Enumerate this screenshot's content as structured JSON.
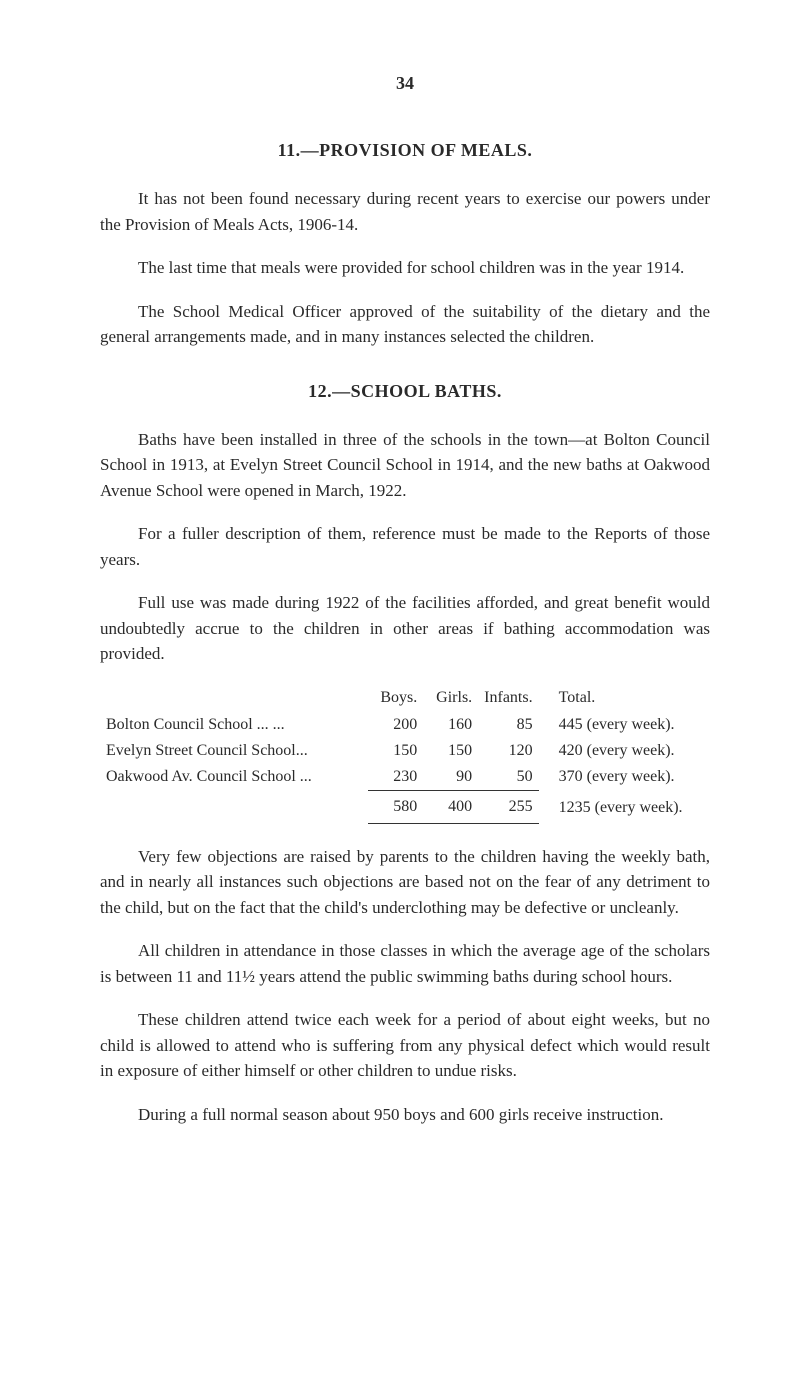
{
  "page_number": "34",
  "section11": {
    "title": "11.—PROVISION OF MEALS.",
    "p1": "It has not been found necessary during recent years to exercise our powers under the Provision of Meals Acts, 1906-14.",
    "p2": "The last time that meals were provided for school children was in the year 1914.",
    "p3": "The School Medical Officer approved of the suitability of the dietary and the general arrangements made, and in many instances selected the children."
  },
  "section12": {
    "title": "12.—SCHOOL BATHS.",
    "p1": "Baths have been installed in three of the schools in the town—at Bolton Council School in 1913, at Evelyn Street Council School in 1914, and the new baths at Oakwood Avenue School were opened in March, 1922.",
    "p2": "For a fuller description of them, reference must be made to the Reports of those years.",
    "p3": "Full use was made during 1922 of the facilities afforded, and great benefit would undoubtedly accrue to the children in other areas if bathing accommodation was provided.",
    "table": {
      "headers": {
        "boys": "Boys.",
        "girls": "Girls.",
        "infants": "Infants.",
        "total": "Total."
      },
      "rows": [
        {
          "label": "Bolton Council School ...   ...",
          "boys": "200",
          "girls": "160",
          "infants": "85",
          "note": "445 (every week)."
        },
        {
          "label": "Evelyn Street Council School...",
          "boys": "150",
          "girls": "150",
          "infants": "120",
          "note": "420 (every week)."
        },
        {
          "label": "Oakwood Av. Council School ...",
          "boys": "230",
          "girls": "90",
          "infants": "50",
          "note": "370 (every week)."
        }
      ],
      "totals": {
        "boys": "580",
        "girls": "400",
        "infants": "255",
        "note": "1235 (every week)."
      }
    },
    "p4": "Very few objections are raised by parents to the children having the weekly bath, and in nearly all instances such objections are based not on the fear of any detriment to the child, but on the fact that the child's underclothing may be defective or uncleanly.",
    "p5": "All children in attendance in those classes in which the average age of the scholars is between 11 and 11½ years attend the public swimming baths during school hours.",
    "p6": "These children attend twice each week for a period of about eight weeks, but no child is allowed to attend who is suffering from any physical defect which would result in exposure of either himself or other children to undue risks.",
    "p7": "During a full normal season about 950 boys and 600 girls receive instruction."
  }
}
